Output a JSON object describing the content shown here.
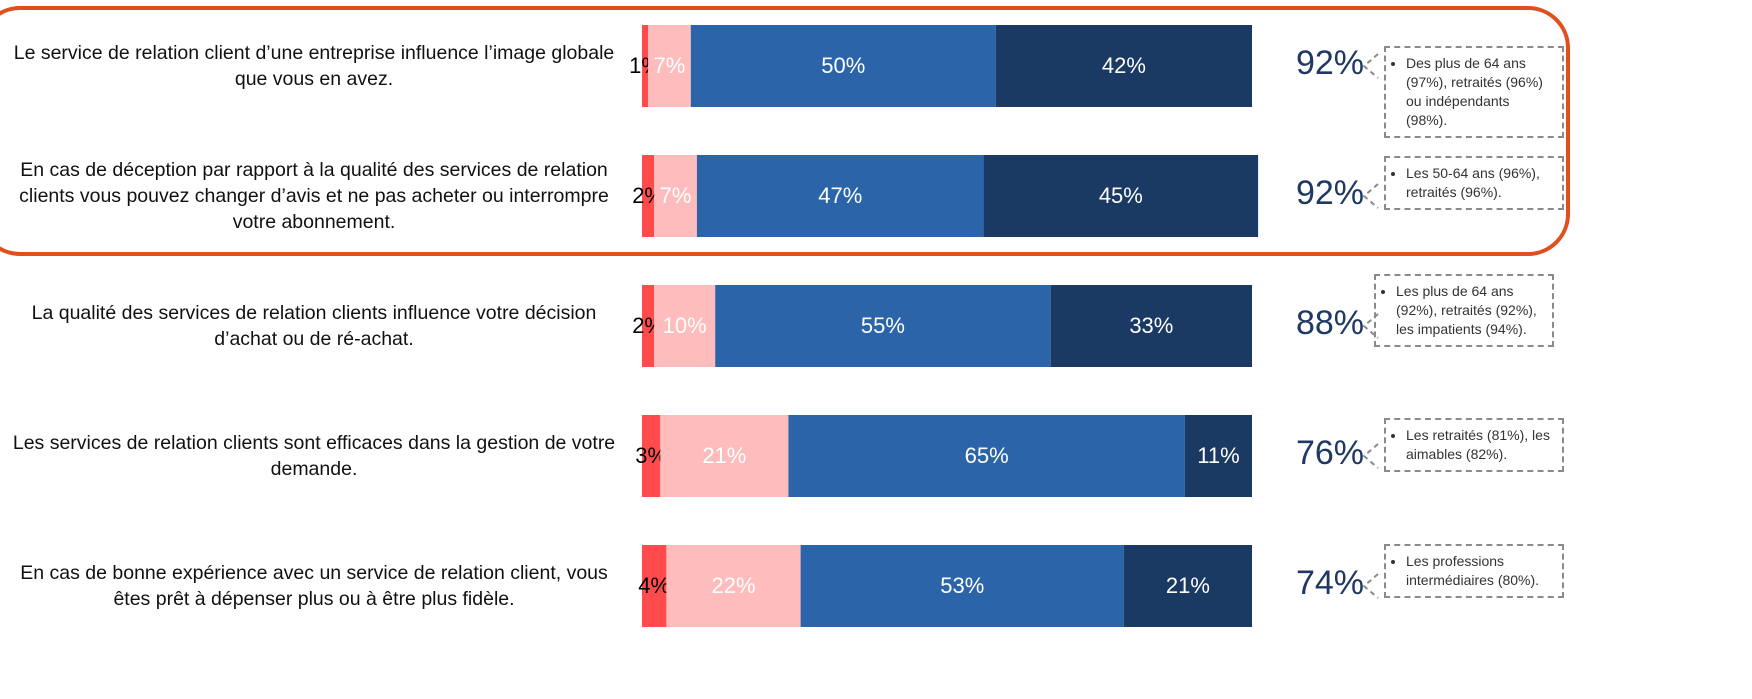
{
  "chart_data": {
    "type": "bar",
    "orientation": "horizontal",
    "stacked": true,
    "categories": [
      "Le service de relation client d’une entreprise influence l’image globale que vous en avez.",
      "En cas de déception par rapport à la qualité des services de relation clients vous pouvez changer d’avis et ne pas acheter ou interrompre votre abonnement.",
      "La qualité des services de relation clients influence votre décision d’achat ou de ré-achat.",
      "Les services de relation clients sont efficaces dans la gestion de votre demande.",
      "En cas de bonne expérience avec un service de relation client, vous êtes prêt à dépenser plus ou à être plus fidèle."
    ],
    "series": [
      {
        "color": "#ff4b4b",
        "label_color": "#000000",
        "values": [
          1,
          2,
          2,
          3,
          4
        ],
        "value_labels": [
          "1%",
          "2%",
          "2%",
          "3%",
          "4%"
        ]
      },
      {
        "color": "#ffbcbc",
        "label_color": "#ffffff",
        "values": [
          7,
          7,
          10,
          21,
          22
        ],
        "value_labels": [
          "7%",
          "7%",
          "10%",
          "21%",
          "22%"
        ]
      },
      {
        "color": "#2b64a8",
        "label_color": "#ffffff",
        "values": [
          50,
          47,
          55,
          65,
          53
        ],
        "value_labels": [
          "50%",
          "47%",
          "55%",
          "65%",
          "53%"
        ]
      },
      {
        "color": "#1a3963",
        "label_color": "#ffffff",
        "values": [
          42,
          45,
          33,
          11,
          21
        ],
        "value_labels": [
          "42%",
          "45%",
          "33%",
          "11%",
          "21%"
        ]
      }
    ],
    "xlim": [
      0,
      100
    ],
    "totals": {
      "values": [
        92,
        92,
        88,
        76,
        74
      ],
      "value_labels": [
        "92%",
        "92%",
        "88%",
        "76%",
        "74%"
      ]
    },
    "notes": [
      "Des plus de 64 ans (97%), retraités (96%) ou indépendants (98%).",
      "Les 50-64 ans (96%), retraités (96%).",
      "Les plus de 64 ans (92%), retraités (92%), les impatients (94%).",
      "Les retraités (81%), les aimables (82%).",
      "Les professions intermédiaires (80%)."
    ],
    "highlight_rows": [
      0,
      1
    ],
    "highlight_color": "#e0501e"
  }
}
